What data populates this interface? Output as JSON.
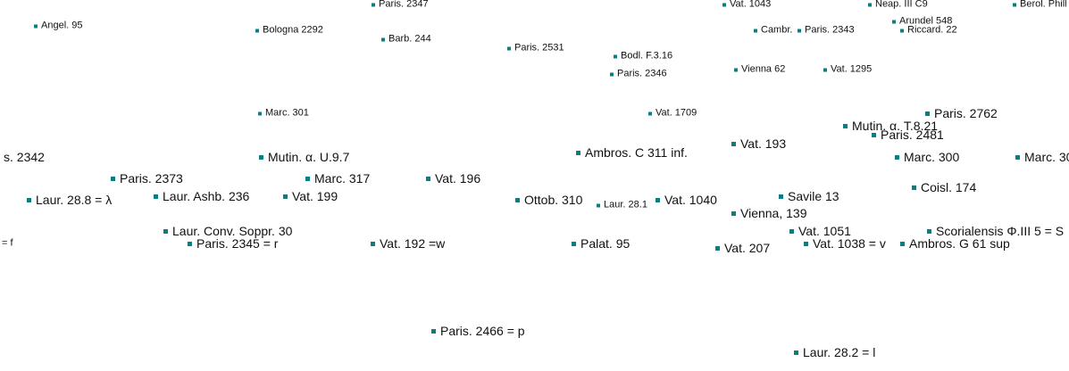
{
  "colors": {
    "marker": "#0a7f7f",
    "text": "#111111",
    "background": "#ffffff"
  },
  "nodes": [
    {
      "label": "Angel. 95"
    },
    {
      "label": "Bologna 2292"
    },
    {
      "label": "Paris. 2347"
    },
    {
      "label": "Barb. 244"
    },
    {
      "label": "Paris. 2531"
    },
    {
      "label": "Bodl. F.3.16"
    },
    {
      "label": "Paris. 2346"
    },
    {
      "label": "Vat. 1043"
    },
    {
      "label": "Cambr."
    },
    {
      "label": "Paris. 2343"
    },
    {
      "label": "Vienna 62"
    },
    {
      "label": "Vat. 1295"
    },
    {
      "label": "Neap. III C9"
    },
    {
      "label": "Arundel 548"
    },
    {
      "label": "Riccard. 22"
    },
    {
      "label": "Berol. Phill"
    },
    {
      "label": "Marc. 301"
    },
    {
      "label": "Vat. 1709"
    },
    {
      "label": "Paris. 2762"
    },
    {
      "label": "Mutin. α. T.8.21"
    },
    {
      "label": "Paris. 2481"
    },
    {
      "label": "Vat. 193"
    },
    {
      "label": "Ambros. C 311 inf."
    },
    {
      "label": "s. 2342"
    },
    {
      "label": "Mutin. α. U.9.7"
    },
    {
      "label": "Marc. 300"
    },
    {
      "label": "Marc. 30"
    },
    {
      "label": "Paris. 2373"
    },
    {
      "label": "Marc. 317"
    },
    {
      "label": "Vat. 196"
    },
    {
      "label": "Coisl. 174"
    },
    {
      "label": "Laur. 28.8 = λ"
    },
    {
      "label": "Laur. Ashb. 236"
    },
    {
      "label": "Vat. 199"
    },
    {
      "label": "Ottob. 310"
    },
    {
      "label": "Laur. 28.1"
    },
    {
      "label": "Vat. 1040"
    },
    {
      "label": "Savile 13"
    },
    {
      "label": "Vienna, 139"
    },
    {
      "label": "Laur. Conv. Soppr. 30"
    },
    {
      "label": "Vat. 1051"
    },
    {
      "label": "Scorialensis Φ.III 5 = S"
    },
    {
      "label": "= f"
    },
    {
      "label": "Paris. 2345 = r"
    },
    {
      "label": "Vat. 192 =w"
    },
    {
      "label": "Palat. 95"
    },
    {
      "label": "Vat. 1038 = v"
    },
    {
      "label": "Ambros. G 61 sup"
    },
    {
      "label": "Vat. 207"
    },
    {
      "label": "Paris. 2466 = p"
    },
    {
      "label": "Laur. 28.2 = l"
    }
  ]
}
